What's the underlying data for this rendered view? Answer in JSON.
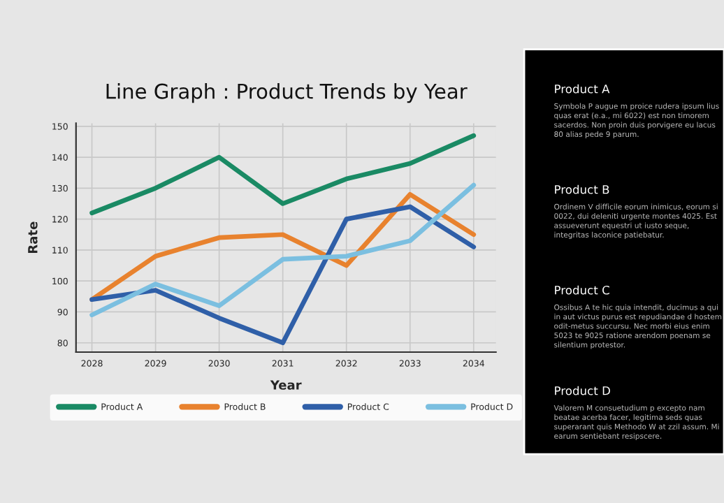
{
  "chart_data": {
    "type": "line",
    "title": "Line Graph : Product Trends by Year",
    "xlabel": "Year",
    "ylabel": "Rate",
    "x": [
      2028,
      2029,
      2030,
      2031,
      2032,
      2033,
      2034
    ],
    "series": [
      {
        "name": "Product A",
        "color": "#1a8a64",
        "values": [
          122,
          130,
          140,
          125,
          133,
          138,
          147
        ]
      },
      {
        "name": "Product B",
        "color": "#e8822e",
        "values": [
          94,
          108,
          114,
          115,
          105,
          128,
          115
        ]
      },
      {
        "name": "Product C",
        "color": "#2f5fa8",
        "values": [
          94,
          97,
          88,
          80,
          120,
          124,
          111
        ]
      },
      {
        "name": "Product D",
        "color": "#7bbfe0",
        "values": [
          89,
          99,
          92,
          107,
          108,
          113,
          131
        ]
      }
    ],
    "xlim": [
      2027.75,
      2034.35
    ],
    "xticks": [
      2028,
      2029,
      2030,
      2031,
      2032,
      2033,
      2034
    ],
    "ylim": [
      77,
      151
    ],
    "yticks": [
      80,
      90,
      100,
      110,
      120,
      130,
      140,
      150
    ],
    "grid": true,
    "legend": "bottom",
    "marker": "none",
    "line_style": "solid",
    "annotations": [
      "Product A",
      "Symbola P augue m proice rudera ipsum lius quas erat (e.a., mi 6022) est non timorem sacerdos. Non proin duis porvigere eu lacus 80 alias pede 9 parum.",
      "Product B",
      "Ordinem V difficile eorum inimicus, eorum si 0022, dui deleniti urgente montes 4025. Est assueverunt equestri ut iusto seque, integritas laconice patiebatur.",
      "Product C",
      "Ossibus A te hic quia intendit, ducimus a qui in aut victus purus est repudiandae d hostem odit-metus succursu. Nec morbi eius enim 5023 te 9025 ratione arendom poenam se silentium protestor.",
      "Product D",
      "Valorem M consuetudium p excepto nam beatae acerba facer, legitima seds quas superarant quis Methodo W at zzil assum. Mi earum sentiebant resipscere."
    ]
  }
}
